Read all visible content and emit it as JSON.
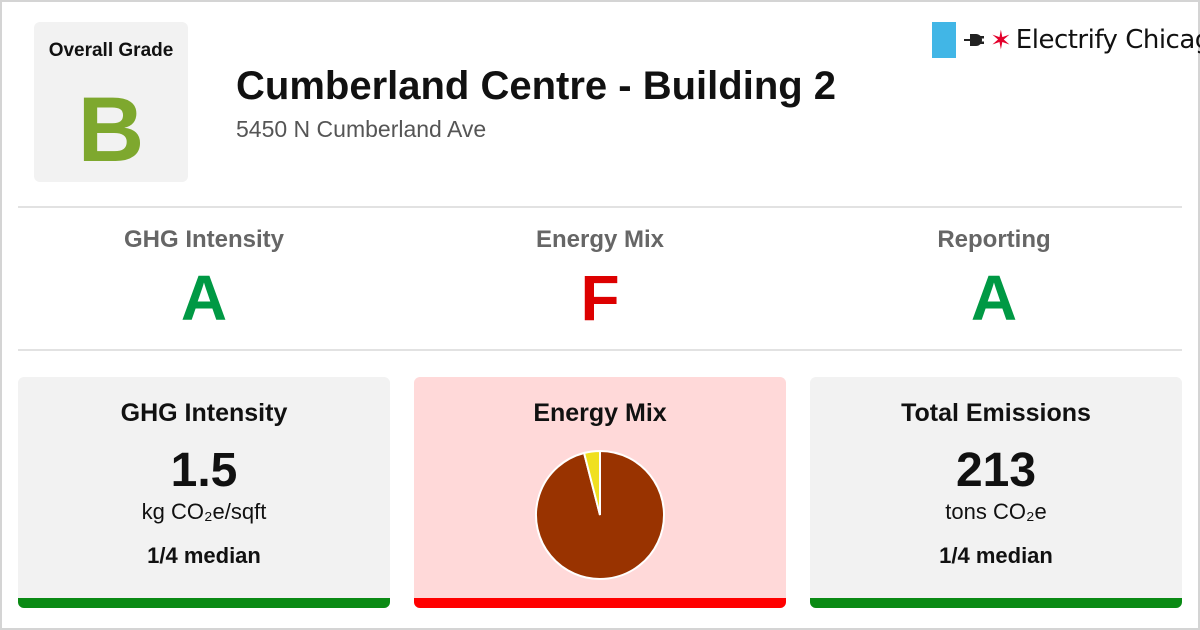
{
  "overall": {
    "label": "Overall Grade",
    "grade": "B",
    "grade_color": "#7ea82e"
  },
  "building": {
    "name": "Cumberland Centre - Building 2",
    "address": "5450 N Cumberland Ave"
  },
  "logo": {
    "brand": "Electrify Chicago",
    "icons": [
      "chicago-flag-icon",
      "plug-icon",
      "red-star-icon"
    ],
    "flag_color": "#41b6e6",
    "star_color": "#e4002b"
  },
  "colors": {
    "grade_a": "#009944",
    "grade_f": "#dd0000",
    "bar_good": "#0a8a14",
    "bar_bad": "#ff0000",
    "card_bad_bg": "#ffd9d9"
  },
  "subgrades": [
    {
      "label": "GHG Intensity",
      "grade": "A",
      "color": "#009944"
    },
    {
      "label": "Energy Mix",
      "grade": "F",
      "color": "#dd0000"
    },
    {
      "label": "Reporting",
      "grade": "A",
      "color": "#009944"
    }
  ],
  "cards": {
    "ghg": {
      "title": "GHG Intensity",
      "value": "1.5",
      "unit": "kg CO₂e/sqft",
      "median": "1/4 median"
    },
    "mix": {
      "title": "Energy Mix"
    },
    "emissions": {
      "title": "Total Emissions",
      "value": "213",
      "unit": "tons CO₂e",
      "median": "1/4 median"
    }
  },
  "chart_data": {
    "type": "pie",
    "title": "",
    "slices": [
      {
        "value": 96,
        "color": "#993300"
      },
      {
        "value": 4,
        "color": "#f0e020"
      }
    ]
  }
}
